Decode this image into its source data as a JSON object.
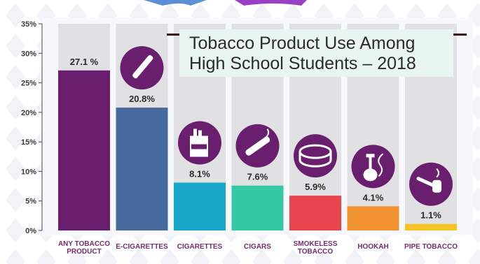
{
  "chart_data": {
    "type": "bar",
    "title_lines": [
      "Tobacco Product Use Among",
      "High School Students – 2018"
    ],
    "categories": [
      [
        "ANY TOBACCO",
        "PRODUCT"
      ],
      [
        "E-CIGARETTES"
      ],
      [
        "CIGARETTES"
      ],
      [
        "CIGARS"
      ],
      [
        "SMOKELESS",
        "TOBACCO"
      ],
      [
        "HOOKAH"
      ],
      [
        "PIPE TOBACCO"
      ]
    ],
    "values": [
      27.1,
      20.8,
      8.1,
      7.6,
      5.9,
      4.1,
      1.1
    ],
    "value_labels": [
      "27.1 %",
      "20.8%",
      "8.1%",
      "7.6%",
      "5.9%",
      "4.1%",
      "1.1%"
    ],
    "icons": [
      null,
      "e-cigarette-icon",
      "cigarette-pack-icon",
      "cigar-icon",
      "smokeless-tobacco-tin-icon",
      "hookah-icon",
      "pipe-icon"
    ],
    "colors": [
      "#6a1f6e",
      "#466a9e",
      "#1aa6c8",
      "#33c9a4",
      "#e9454e",
      "#f39432",
      "#f5c324"
    ],
    "yticks": [
      0,
      5,
      10,
      15,
      20,
      25,
      30,
      35
    ],
    "ytick_labels": [
      "0%",
      "5%",
      "10%",
      "15%",
      "20%",
      "25%",
      "30%",
      "35%"
    ],
    "ylim": [
      0,
      35
    ],
    "grid": false,
    "background_bars": true,
    "icon_color": "#6a1f6e",
    "axis_label_color": "#7a2a6f"
  }
}
